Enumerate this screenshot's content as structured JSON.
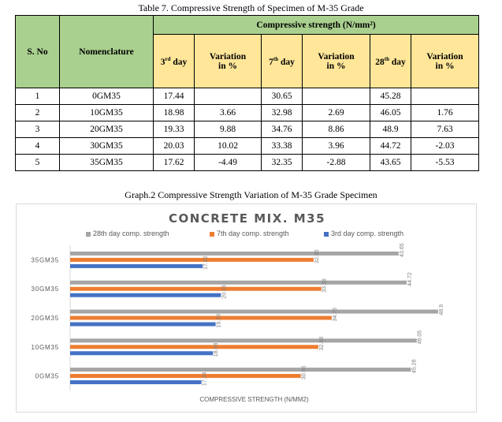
{
  "table": {
    "caption": "Table 7. Compressive Strength of Specimen of M-35 Grade",
    "headers": {
      "sno": "S. No",
      "nomenclature": "Nomenclature",
      "group": "Compressive strength (N/mm²)",
      "day3": "3rd day",
      "day7": "7th day",
      "day28": "28th day",
      "variation": "Variation in %"
    },
    "rows": [
      {
        "sno": "1",
        "name": "0GM35",
        "d3": "17.44",
        "v3": "",
        "d7": "30.65",
        "v7": "",
        "d28": "45.28",
        "v28": ""
      },
      {
        "sno": "2",
        "name": "10GM35",
        "d3": "18.98",
        "v3": "3.66",
        "d7": "32.98",
        "v7": "2.69",
        "d28": "46.05",
        "v28": "1.76"
      },
      {
        "sno": "3",
        "name": "20GM35",
        "d3": "19.33",
        "v3": "9.88",
        "d7": "34.76",
        "v7": "8.86",
        "d28": "48.9",
        "v28": "7.63"
      },
      {
        "sno": "4",
        "name": "30GM35",
        "d3": "20.03",
        "v3": "10.02",
        "d7": "33.38",
        "v7": "3.96",
        "d28": "44.72",
        "v28": "-2.03"
      },
      {
        "sno": "5",
        "name": "35GM35",
        "d3": "17.62",
        "v3": "-4.49",
        "d7": "32.35",
        "v7": "-2.88",
        "d28": "43.65",
        "v28": "-5.53"
      }
    ]
  },
  "graph_caption": "Graph.2 Compressive Strength Variation of M-35 Grade Specimen",
  "chart_data": {
    "type": "bar",
    "orientation": "horizontal",
    "title": "CONCRETE MIX. M35",
    "xlabel": "COMPRESSIVE STRENGTH (N/MM2)",
    "ylabel": "",
    "categories": [
      "0GM35",
      "10GM35",
      "20GM35",
      "30GM35",
      "35GM35"
    ],
    "series": [
      {
        "name": "28th day comp. strength",
        "color": "#a5a5a5",
        "values": [
          45.28,
          46.05,
          48.9,
          44.72,
          43.65
        ],
        "labels": [
          "45.28",
          "46.05",
          "48.9",
          "44.72",
          "43.65"
        ]
      },
      {
        "name": "7th day comp. strength",
        "color": "#ed7d31",
        "values": [
          30.65,
          32.98,
          34.76,
          33.38,
          32.35
        ],
        "labels": [
          "30.65",
          "32.98",
          "34.76",
          "33.38",
          "32.35"
        ]
      },
      {
        "name": "3rd day comp. strength",
        "color": "#4472c4",
        "values": [
          17.44,
          18.98,
          19.33,
          20.03,
          17.62
        ],
        "labels": [
          "17.44",
          "18.98",
          "19.33",
          "20.03",
          "17.62"
        ]
      }
    ],
    "xlim": [
      0,
      51
    ],
    "legend_position": "top",
    "grid": false
  }
}
